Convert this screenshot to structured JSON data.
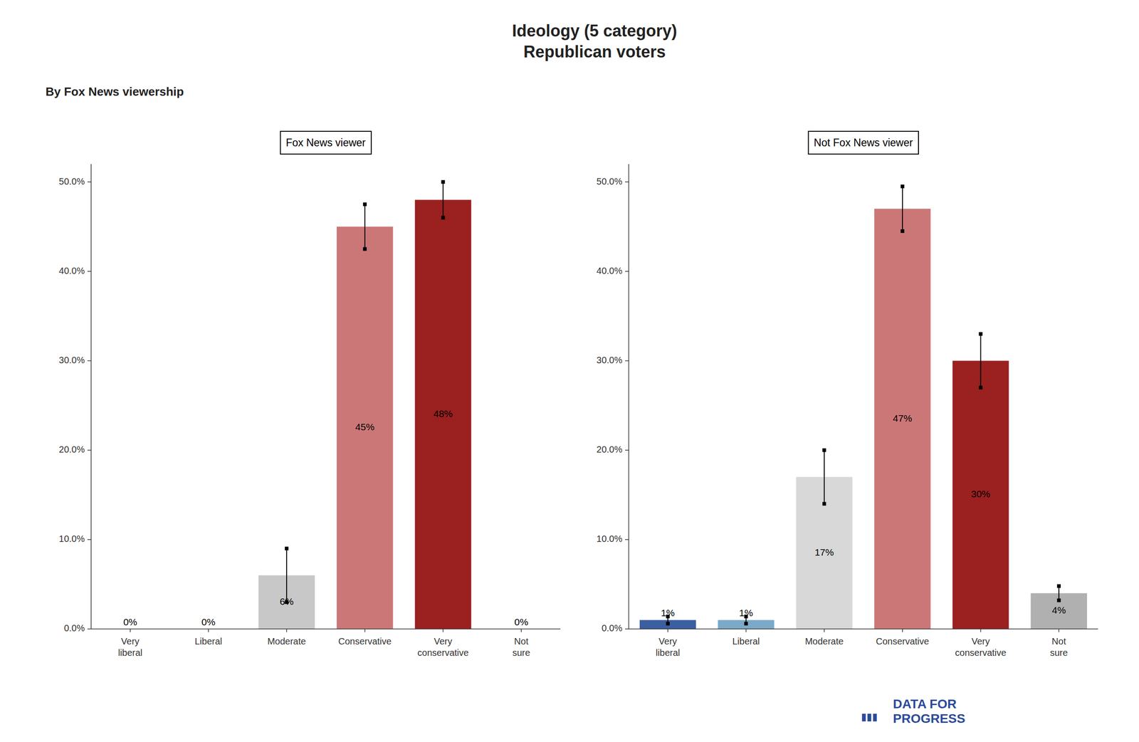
{
  "title": "Ideology (5 category)\nRepublican voters",
  "subtitle": "By Fox News viewership",
  "annotations": [
    {
      "text": "▮▮▮",
      "color": "#2B4A9B"
    },
    {
      "text": "DATA FOR\nPROGRESS",
      "color": "#2B4A9B"
    }
  ],
  "chart_data": [
    {
      "type": "bar",
      "title": "Fox News viewer",
      "categories": [
        "Very\nliberal",
        "Liberal",
        "Moderate",
        "Conservative",
        "Very\nconservative",
        "Not\nsure"
      ],
      "values": [
        0,
        0,
        6,
        45,
        48,
        0
      ],
      "value_labels": [
        "0%",
        "0%",
        "6%",
        "45%",
        "48%",
        "0%"
      ],
      "errors": [
        null,
        null,
        3.0,
        2.5,
        2.0,
        null
      ],
      "colors": [
        "#B0D4E8",
        "#7aaac8",
        "#C8C8C8",
        "#CC7777",
        "#9B2020",
        "#C0C0C0"
      ],
      "ylim": [
        0,
        52
      ],
      "yticks": [
        {
          "value": 0,
          "label": "0.0%"
        },
        {
          "value": 10,
          "label": "10.0%"
        },
        {
          "value": 20,
          "label": "20.0%"
        },
        {
          "value": 30,
          "label": "30.0%"
        },
        {
          "value": 40,
          "label": "40.0%"
        },
        {
          "value": 50,
          "label": "50.0%"
        }
      ],
      "grid": false,
      "data_labels": true
    },
    {
      "type": "bar",
      "title": "Not Fox News viewer",
      "categories": [
        "Very\nliberal",
        "Liberal",
        "Moderate",
        "Conservative",
        "Very\nconservative",
        "Not\nsure"
      ],
      "values": [
        1,
        1,
        17,
        47,
        30,
        4
      ],
      "value_labels": [
        "1%",
        "1%",
        "17%",
        "47%",
        "30%",
        "4%"
      ],
      "errors": [
        0.4,
        0.4,
        3.0,
        2.5,
        3.0,
        0.8
      ],
      "colors": [
        "#3B5FA0",
        "#7aaac8",
        "#D8D8D8",
        "#CC7777",
        "#9B2020",
        "#B0B0B0"
      ],
      "ylim": [
        0,
        52
      ],
      "yticks": [
        {
          "value": 0,
          "label": "0.0%"
        },
        {
          "value": 10,
          "label": "10.0%"
        },
        {
          "value": 20,
          "label": "20.0%"
        },
        {
          "value": 30,
          "label": "30.0%"
        },
        {
          "value": 40,
          "label": "40.0%"
        },
        {
          "value": 50,
          "label": "50.0%"
        }
      ],
      "grid": false,
      "data_labels": true
    }
  ]
}
